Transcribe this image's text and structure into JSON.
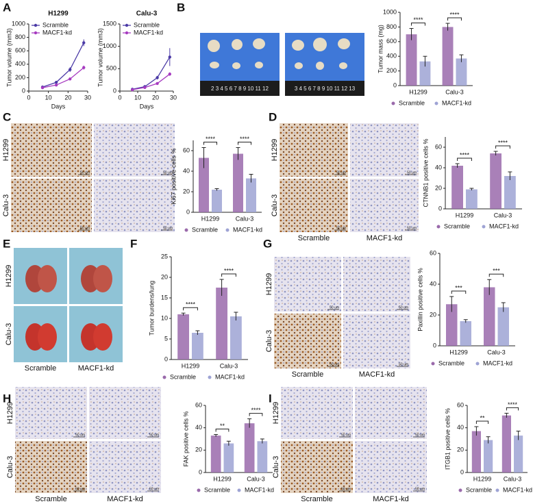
{
  "figure": {
    "panel_labels": [
      "A",
      "B",
      "C",
      "D",
      "E",
      "F",
      "G",
      "H",
      "I"
    ],
    "image_rows": [
      "H1299",
      "Calu-3"
    ],
    "image_cols": [
      "Scramble",
      "MACF1-kd"
    ],
    "scale_bar": "50 um",
    "rulers": [
      "2 3 4 5 6 7 8 9 10 11 12",
      "3 4 5 6 7 8 9 10 11 12 13"
    ]
  },
  "chart_data": [
    {
      "type": "line",
      "title": "H1299",
      "xlabel": "Days",
      "ylabel": "Tumor volume (mm3)",
      "x": [
        7,
        14,
        21,
        28
      ],
      "xlim": [
        0,
        30
      ],
      "xticks": [
        0,
        10,
        20,
        30
      ],
      "ylim": [
        0,
        1000
      ],
      "yticks": [
        0,
        200,
        400,
        600,
        800,
        1000
      ],
      "series": [
        {
          "name": "Scramble",
          "color": "#4b3aa6",
          "values": [
            60,
            130,
            320,
            720
          ],
          "errors": [
            10,
            15,
            35,
            50
          ]
        },
        {
          "name": "MACF1-kd",
          "color": "#a63ac0",
          "values": [
            50,
            90,
            180,
            350
          ],
          "errors": [
            8,
            12,
            20,
            30
          ]
        }
      ]
    },
    {
      "type": "line",
      "title": "Calu-3",
      "xlabel": "Days",
      "ylabel": "Tumor volume (mm3)",
      "x": [
        7,
        14,
        21,
        28
      ],
      "xlim": [
        0,
        30
      ],
      "xticks": [
        0,
        10,
        20,
        30
      ],
      "ylim": [
        0,
        1500
      ],
      "yticks": [
        0,
        500,
        1000,
        1500
      ],
      "series": [
        {
          "name": "Scramble",
          "color": "#4b3aa6",
          "values": [
            40,
            100,
            300,
            760
          ],
          "errors": [
            10,
            15,
            40,
            200
          ]
        },
        {
          "name": "MACF1-kd",
          "color": "#a63ac0",
          "values": [
            30,
            80,
            170,
            380
          ],
          "errors": [
            8,
            10,
            20,
            40
          ]
        }
      ]
    },
    {
      "type": "bar",
      "ylabel": "Tumor mass (mg)",
      "categories": [
        "H1299",
        "Calu-3"
      ],
      "ylim": [
        0,
        1000
      ],
      "yticks": [
        0,
        200,
        400,
        600,
        800,
        1000
      ],
      "significance": [
        "****",
        "****"
      ],
      "series": [
        {
          "name": "Scramble",
          "color": "#9a6aab",
          "values": [
            700,
            800
          ],
          "errors": [
            80,
            50
          ]
        },
        {
          "name": "MACF1-kd",
          "color": "#9ea3d4",
          "values": [
            330,
            370
          ],
          "errors": [
            70,
            50
          ]
        }
      ]
    },
    {
      "type": "bar",
      "ylabel": "Ki67 positive cells %",
      "categories": [
        "H1299",
        "Calu-3"
      ],
      "ylim": [
        0,
        70
      ],
      "yticks": [
        0,
        20,
        40,
        60
      ],
      "significance": [
        "****",
        "****"
      ],
      "series": [
        {
          "name": "Scramble",
          "color": "#9a6aab",
          "values": [
            53,
            57
          ],
          "errors": [
            10,
            6
          ]
        },
        {
          "name": "MACF1-kd",
          "color": "#9ea3d4",
          "values": [
            22,
            33
          ],
          "errors": [
            1,
            4
          ]
        }
      ]
    },
    {
      "type": "bar",
      "ylabel": "CTNNB1 positive cells %",
      "categories": [
        "H1299",
        "Calu-3"
      ],
      "ylim": [
        0,
        70
      ],
      "yticks": [
        0,
        20,
        40,
        60
      ],
      "significance": [
        "****",
        "****"
      ],
      "series": [
        {
          "name": "Scramble",
          "color": "#9a6aab",
          "values": [
            42,
            54
          ],
          "errors": [
            2,
            2
          ]
        },
        {
          "name": "MACF1-kd",
          "color": "#9ea3d4",
          "values": [
            19,
            32
          ],
          "errors": [
            1,
            4
          ]
        }
      ]
    },
    {
      "type": "bar",
      "ylabel": "Tumor burdens/lung",
      "categories": [
        "H1299",
        "Calu-3"
      ],
      "ylim": [
        0,
        25
      ],
      "yticks": [
        0,
        5,
        10,
        15,
        20,
        25
      ],
      "significance": [
        "****",
        "****"
      ],
      "series": [
        {
          "name": "Scramble",
          "color": "#9a6aab",
          "values": [
            11,
            17.5
          ],
          "errors": [
            0.3,
            2
          ]
        },
        {
          "name": "MACF1-kd",
          "color": "#9ea3d4",
          "values": [
            6.5,
            10.5
          ],
          "errors": [
            0.5,
            1
          ]
        }
      ]
    },
    {
      "type": "bar",
      "ylabel": "Paxillin positive cells %",
      "categories": [
        "H1299",
        "Calu-3"
      ],
      "ylim": [
        0,
        60
      ],
      "yticks": [
        0,
        20,
        40,
        60
      ],
      "significance": [
        "***",
        "***"
      ],
      "series": [
        {
          "name": "Scramble",
          "color": "#9a6aab",
          "values": [
            27,
            38
          ],
          "errors": [
            5,
            5
          ]
        },
        {
          "name": "MACF1-kd",
          "color": "#9ea3d4",
          "values": [
            16,
            25
          ],
          "errors": [
            1,
            3
          ]
        }
      ]
    },
    {
      "type": "bar",
      "ylabel": "FAK positive cells %",
      "categories": [
        "H1299",
        "Calu-3"
      ],
      "ylim": [
        0,
        60
      ],
      "yticks": [
        0,
        20,
        40,
        60
      ],
      "significance": [
        "**",
        "****"
      ],
      "series": [
        {
          "name": "Scramble",
          "color": "#9a6aab",
          "values": [
            33,
            44
          ],
          "errors": [
            1,
            4
          ]
        },
        {
          "name": "MACF1-kd",
          "color": "#9ea3d4",
          "values": [
            26,
            28
          ],
          "errors": [
            2,
            2
          ]
        }
      ]
    },
    {
      "type": "bar",
      "ylabel": "ITGB1 positive cells %",
      "categories": [
        "H1299",
        "Calu-3"
      ],
      "ylim": [
        0,
        60
      ],
      "yticks": [
        0,
        20,
        40,
        60
      ],
      "significance": [
        "**",
        "****"
      ],
      "series": [
        {
          "name": "Scramble",
          "color": "#9a6aab",
          "values": [
            37,
            51
          ],
          "errors": [
            4,
            2
          ]
        },
        {
          "name": "MACF1-kd",
          "color": "#9ea3d4",
          "values": [
            29,
            33
          ],
          "errors": [
            3,
            4
          ]
        }
      ]
    }
  ]
}
